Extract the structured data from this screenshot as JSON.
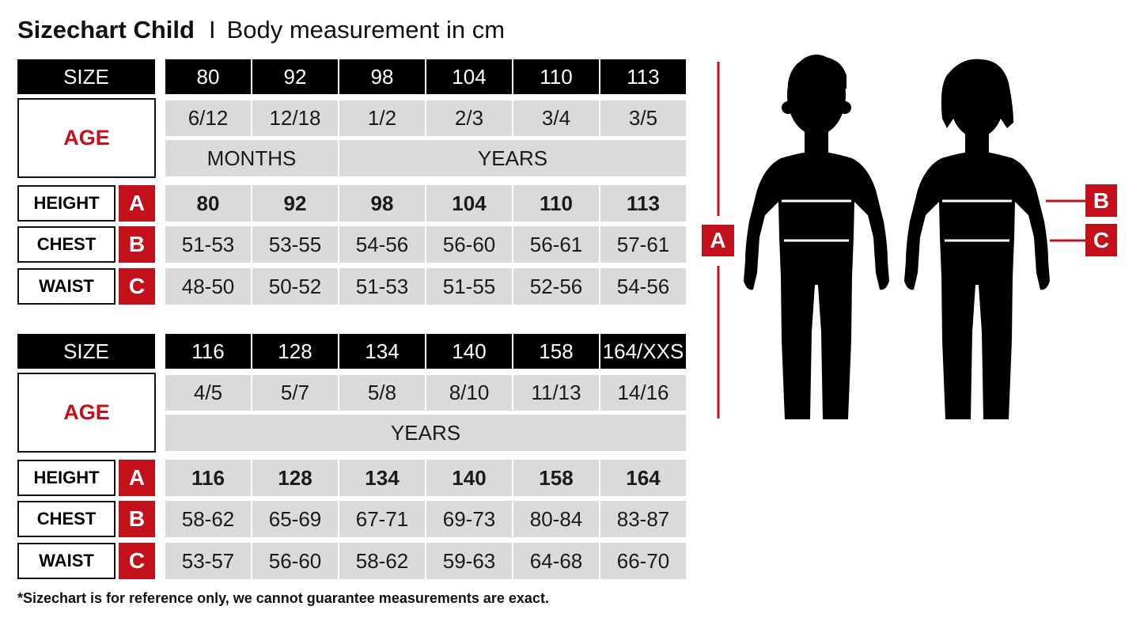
{
  "title": {
    "bold": "Sizechart Child",
    "separator": "I",
    "subtitle": "Body measurement in cm"
  },
  "labels": {
    "size": "SIZE",
    "age": "AGE",
    "height": "HEIGHT",
    "chest": "CHEST",
    "waist": "WAIST",
    "height_code": "A",
    "chest_code": "B",
    "waist_code": "C"
  },
  "tables": [
    {
      "sizes": [
        "80",
        "92",
        "98",
        "104",
        "110",
        "113"
      ],
      "ages": [
        "6/12",
        "12/18",
        "1/2",
        "2/3",
        "3/4",
        "3/5"
      ],
      "age_units": [
        {
          "label": "MONTHS",
          "span": 2
        },
        {
          "label": "YEARS",
          "span": 4
        }
      ],
      "height": [
        "80",
        "92",
        "98",
        "104",
        "110",
        "113"
      ],
      "chest": [
        "51-53",
        "53-55",
        "54-56",
        "56-60",
        "56-61",
        "57-61"
      ],
      "waist": [
        "48-50",
        "50-52",
        "51-53",
        "51-55",
        "52-56",
        "54-56"
      ]
    },
    {
      "sizes": [
        "116",
        "128",
        "134",
        "140",
        "158",
        "164/XXS"
      ],
      "ages": [
        "4/5",
        "5/7",
        "5/8",
        "8/10",
        "11/13",
        "14/16"
      ],
      "age_units": [
        {
          "label": "YEARS",
          "span": 6
        }
      ],
      "height": [
        "116",
        "128",
        "134",
        "140",
        "158",
        "164"
      ],
      "chest": [
        "58-62",
        "65-69",
        "67-71",
        "69-73",
        "80-84",
        "83-87"
      ],
      "waist": [
        "53-57",
        "56-60",
        "58-62",
        "59-63",
        "64-68",
        "66-70"
      ]
    }
  ],
  "figure": {
    "height_marker": "A",
    "chest_marker": "B",
    "waist_marker": "C",
    "accent_color": "#c3101a"
  },
  "footnote": "*Sizechart is for reference only, we cannot guarantee measurements are exact."
}
